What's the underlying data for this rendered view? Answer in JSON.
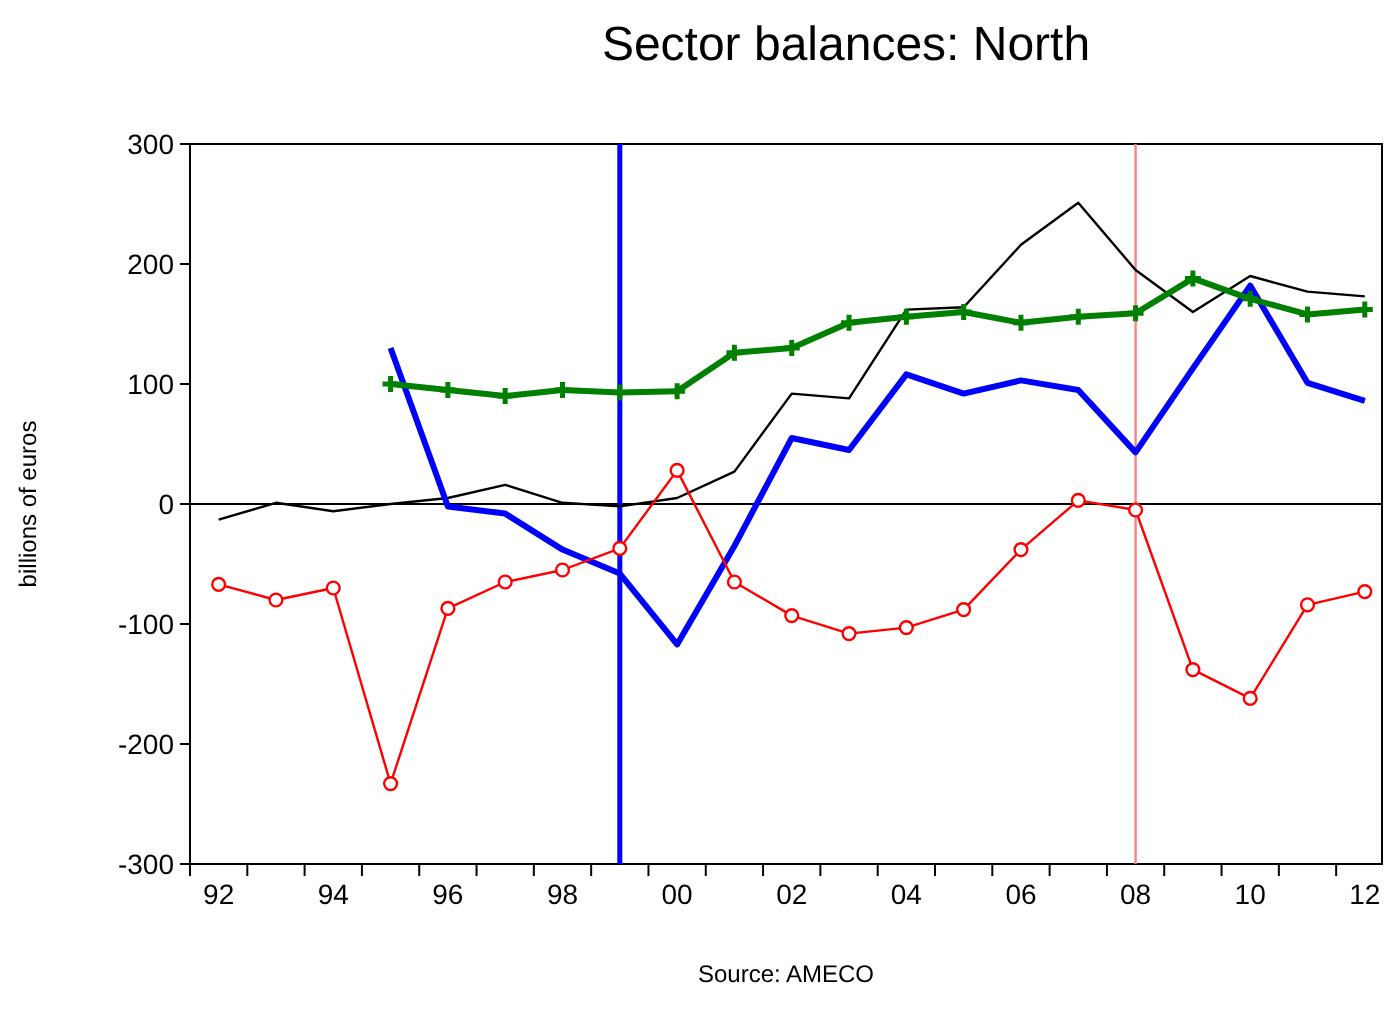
{
  "chart_data": {
    "type": "line",
    "title": "Sector balances: North",
    "ylabel": "billions of euros",
    "annotations": [
      "Source: AMECO"
    ],
    "x": [
      1992,
      1993,
      1994,
      1995,
      1996,
      1997,
      1998,
      1999,
      2000,
      2001,
      2002,
      2003,
      2004,
      2005,
      2006,
      2007,
      2008,
      2009,
      2010,
      2011,
      2012
    ],
    "xlim": [
      1991.5,
      2012.3
    ],
    "xticks": [
      {
        "value": 1991.5,
        "label": null
      },
      {
        "value": 1992,
        "label": "92"
      },
      {
        "value": 1992.5,
        "label": null
      },
      {
        "value": 1993.5,
        "label": null
      },
      {
        "value": 1994,
        "label": "94"
      },
      {
        "value": 1994.5,
        "label": null
      },
      {
        "value": 1995.5,
        "label": null
      },
      {
        "value": 1996,
        "label": "96"
      },
      {
        "value": 1996.5,
        "label": null
      },
      {
        "value": 1997.5,
        "label": null
      },
      {
        "value": 1998,
        "label": "98"
      },
      {
        "value": 1998.5,
        "label": null
      },
      {
        "value": 1999.5,
        "label": null
      },
      {
        "value": 2000,
        "label": "00"
      },
      {
        "value": 2000.5,
        "label": null
      },
      {
        "value": 2001.5,
        "label": null
      },
      {
        "value": 2002,
        "label": "02"
      },
      {
        "value": 2002.5,
        "label": null
      },
      {
        "value": 2003.5,
        "label": null
      },
      {
        "value": 2004,
        "label": "04"
      },
      {
        "value": 2004.5,
        "label": null
      },
      {
        "value": 2005.5,
        "label": null
      },
      {
        "value": 2006,
        "label": "06"
      },
      {
        "value": 2006.5,
        "label": null
      },
      {
        "value": 2007.5,
        "label": null
      },
      {
        "value": 2008,
        "label": "08"
      },
      {
        "value": 2008.5,
        "label": null
      },
      {
        "value": 2009.5,
        "label": null
      },
      {
        "value": 2010,
        "label": "10"
      },
      {
        "value": 2010.5,
        "label": null
      },
      {
        "value": 2011.5,
        "label": null
      },
      {
        "value": 2012,
        "label": "12"
      }
    ],
    "ylim": [
      -300,
      300
    ],
    "yticks": [
      -300,
      -200,
      -100,
      0,
      100,
      200,
      300
    ],
    "ref_lines": [
      {
        "axis": "y",
        "value": 0,
        "color": "#000000"
      },
      {
        "axis": "x",
        "value": 1999,
        "color": "#0000ff"
      },
      {
        "axis": "x",
        "value": 2008,
        "color": "#ff8080"
      }
    ],
    "series": [
      {
        "color": "#000000",
        "marker": "none",
        "values": [
          -13,
          1,
          -6,
          0,
          5,
          16,
          1,
          -2,
          5,
          27,
          92,
          88,
          162,
          164,
          216,
          251,
          195,
          160,
          190,
          177,
          173
        ]
      },
      {
        "color": "#0000ff",
        "marker": "none",
        "values": [
          null,
          null,
          null,
          130,
          -2,
          -8,
          -38,
          -58,
          -117,
          -35,
          55,
          45,
          108,
          92,
          103,
          95,
          43,
          113,
          182,
          101,
          86
        ]
      },
      {
        "color": "#008000",
        "marker": "cross",
        "values": [
          null,
          null,
          null,
          100,
          95,
          90,
          95,
          93,
          94,
          126,
          130,
          151,
          156,
          160,
          151,
          156,
          159,
          188,
          171,
          158,
          162
        ]
      },
      {
        "color": "#ff0000",
        "marker": "circle",
        "values": [
          -67,
          -80,
          -70,
          -233,
          -87,
          -65,
          -55,
          -37,
          28,
          -65,
          -93,
          -108,
          -103,
          -88,
          -38,
          3,
          -5,
          -138,
          -162,
          -84,
          -73
        ]
      }
    ]
  }
}
